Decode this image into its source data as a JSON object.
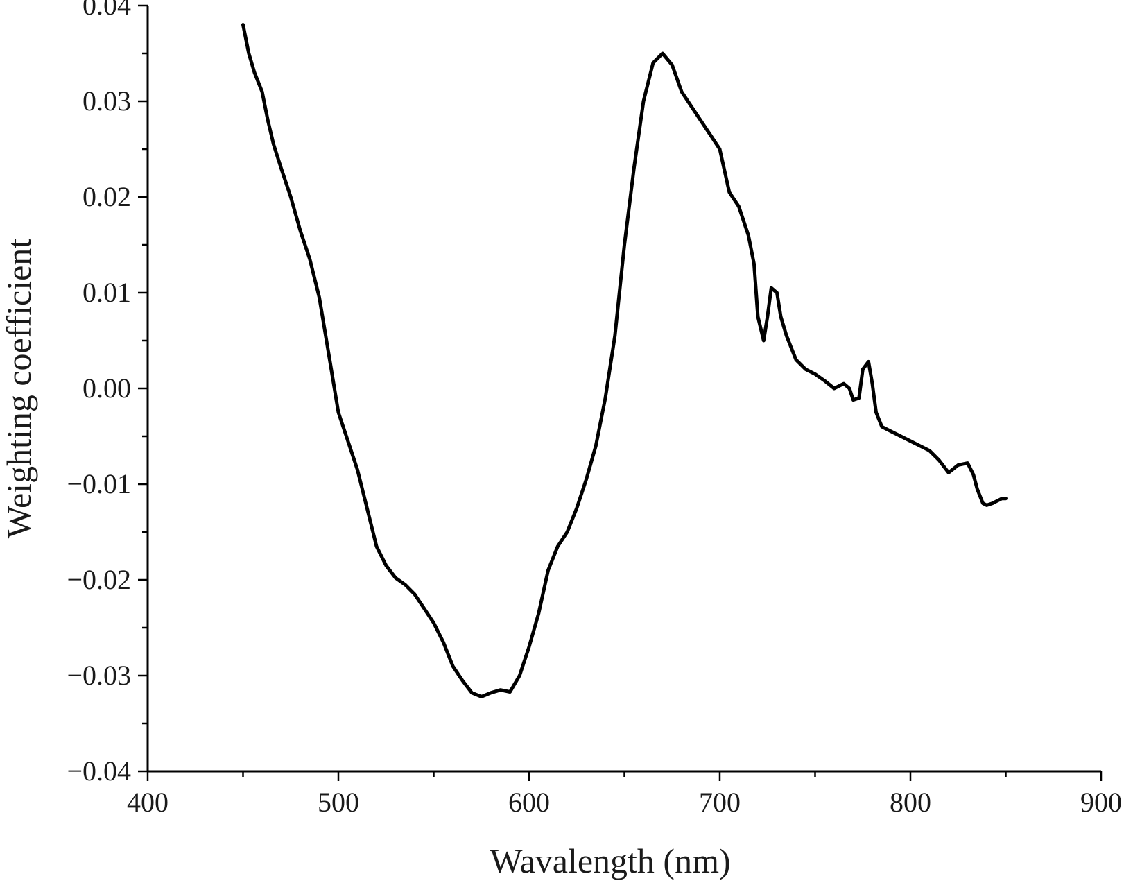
{
  "chart_data": {
    "type": "line",
    "title": "",
    "xlabel": "Wavalength (nm)",
    "ylabel": "Weighting coefficient",
    "xlim": [
      400,
      900
    ],
    "ylim": [
      -0.04,
      0.04
    ],
    "x_ticks": [
      400,
      500,
      600,
      700,
      800,
      900
    ],
    "x_tick_labels": [
      "400",
      "500",
      "600",
      "700",
      "800",
      "900"
    ],
    "x_minor_step": 50,
    "y_ticks": [
      -0.04,
      -0.03,
      -0.02,
      -0.01,
      0.0,
      0.01,
      0.02,
      0.03,
      0.04
    ],
    "y_tick_labels": [
      "−0.04",
      "−0.03",
      "−0.02",
      "−0.01",
      "0.00",
      "0.01",
      "0.02",
      "0.03",
      "0.04"
    ],
    "y_minor_step": 0.005,
    "grid": false,
    "legend": "none",
    "line_color": "#000000",
    "series": [
      {
        "x": [
          450,
          453,
          456,
          460,
          463,
          466,
          470,
          475,
          480,
          485,
          490,
          495,
          500,
          505,
          510,
          515,
          520,
          525,
          530,
          535,
          540,
          545,
          550,
          555,
          560,
          565,
          570,
          575,
          580,
          585,
          590,
          595,
          600,
          605,
          610,
          615,
          620,
          625,
          630,
          635,
          640,
          645,
          650,
          655,
          660,
          665,
          670,
          675,
          680,
          685,
          690,
          695,
          700,
          705,
          710,
          715,
          718,
          720,
          723,
          725,
          727,
          730,
          732,
          735,
          740,
          745,
          750,
          755,
          760,
          765,
          768,
          770,
          773,
          775,
          778,
          780,
          782,
          785,
          790,
          795,
          800,
          805,
          810,
          815,
          820,
          825,
          830,
          833,
          835,
          838,
          840,
          843,
          845,
          848,
          850
        ],
        "y": [
          0.038,
          0.035,
          0.033,
          0.031,
          0.028,
          0.0255,
          0.023,
          0.02,
          0.0165,
          0.0135,
          0.0095,
          0.0035,
          -0.0025,
          -0.0055,
          -0.0085,
          -0.0125,
          -0.0165,
          -0.0185,
          -0.0198,
          -0.0205,
          -0.0215,
          -0.023,
          -0.0245,
          -0.0265,
          -0.029,
          -0.0305,
          -0.0318,
          -0.0322,
          -0.0318,
          -0.0315,
          -0.0317,
          -0.03,
          -0.027,
          -0.0235,
          -0.019,
          -0.0165,
          -0.015,
          -0.0125,
          -0.0095,
          -0.006,
          -0.001,
          0.0055,
          0.015,
          0.023,
          0.03,
          0.034,
          0.035,
          0.0338,
          0.031,
          0.0295,
          0.028,
          0.0265,
          0.025,
          0.0205,
          0.019,
          0.016,
          0.013,
          0.0075,
          0.005,
          0.0075,
          0.0105,
          0.01,
          0.0075,
          0.0055,
          0.003,
          0.002,
          0.0015,
          0.0008,
          0.0,
          0.0005,
          0.0,
          -0.0012,
          -0.001,
          0.002,
          0.0028,
          0.0005,
          -0.0025,
          -0.004,
          -0.0045,
          -0.005,
          -0.0055,
          -0.006,
          -0.0065,
          -0.0075,
          -0.0088,
          -0.008,
          -0.0078,
          -0.009,
          -0.0105,
          -0.012,
          -0.0122,
          -0.012,
          -0.0118,
          -0.0115,
          -0.0115
        ]
      }
    ]
  }
}
